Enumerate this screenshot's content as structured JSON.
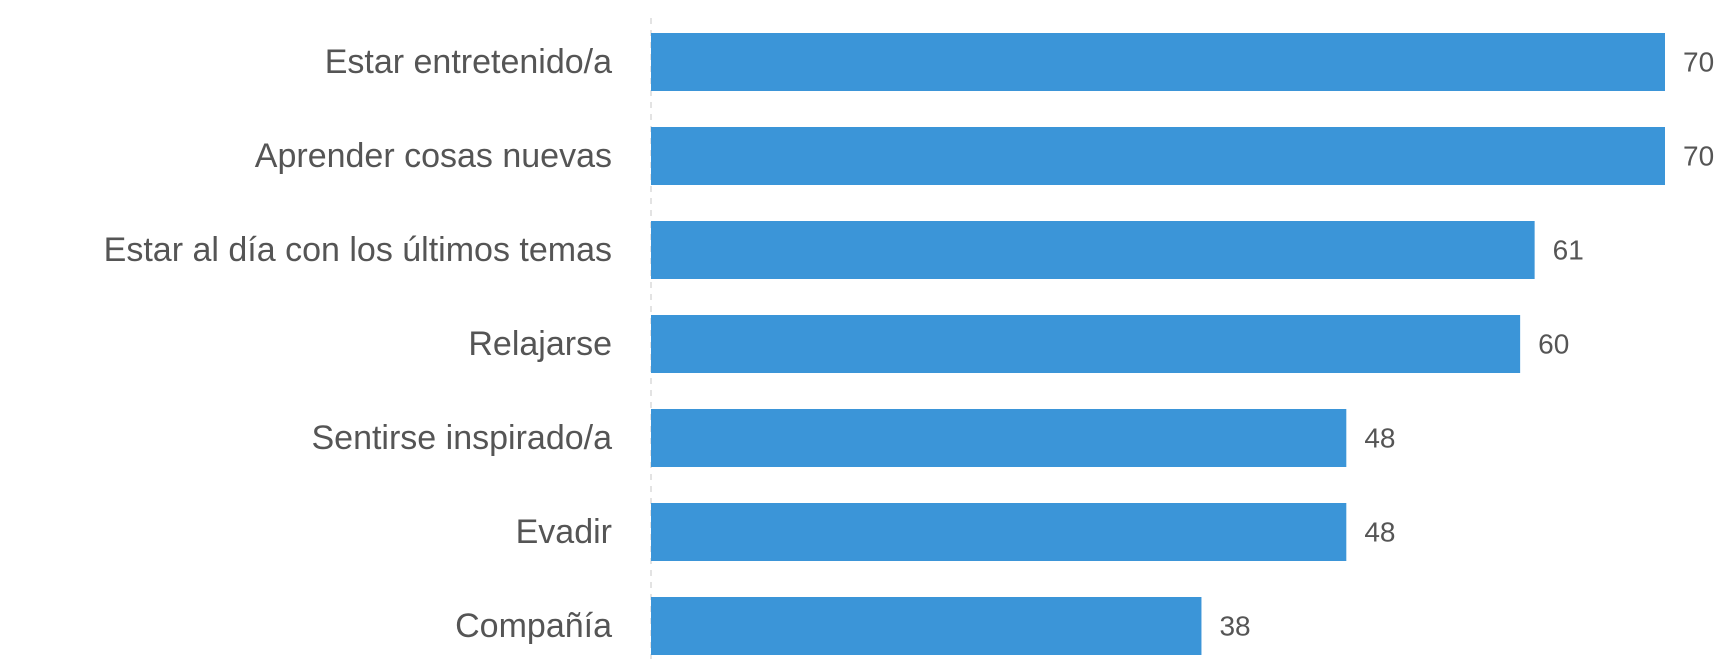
{
  "chart_data": {
    "type": "bar",
    "orientation": "horizontal",
    "categories": [
      "Estar entretenido/a",
      "Aprender cosas nuevas",
      "Estar al día con los últimos temas",
      "Relajarse",
      "Sentirse inspirado/a",
      "Evadir",
      "Compañía"
    ],
    "values": [
      70,
      70,
      61,
      60,
      48,
      48,
      38
    ],
    "data_labels": [
      "70",
      "70",
      "61",
      "60",
      "48",
      "48",
      "38"
    ],
    "xlim": [
      0,
      70
    ],
    "grid": false,
    "legend": "none",
    "bar_color": "#3b95d8"
  }
}
